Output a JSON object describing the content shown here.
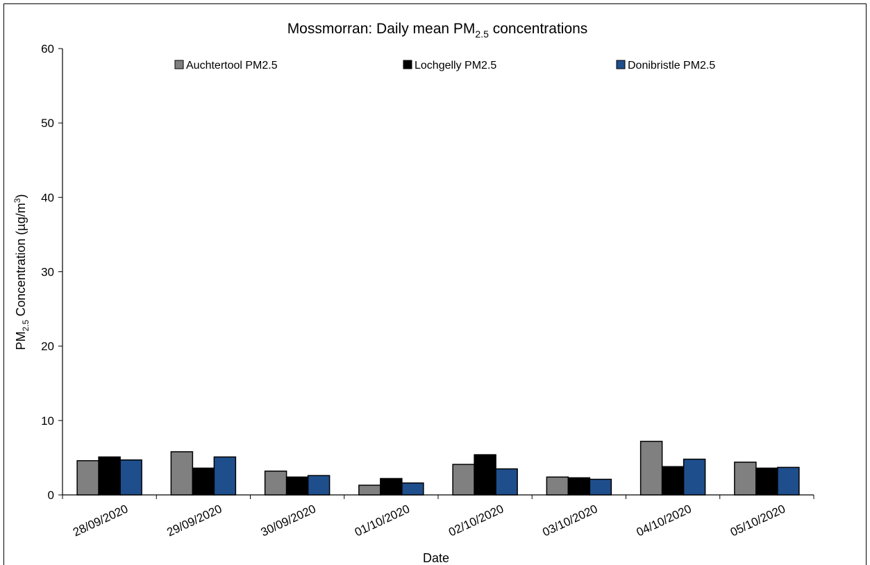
{
  "chart_data": {
    "type": "bar",
    "title": "Mossmorran: Daily mean PM2.5 concentrations",
    "title_parts": {
      "pre": "Mossmorran: Daily mean PM",
      "sub": "2.5",
      "post": " concentrations"
    },
    "xlabel": "Date",
    "ylabel": "PM2.5 Concentration (µg/m3)",
    "ylabel_parts": {
      "pre": "PM",
      "sub": "2.5",
      "mid": " Concentration (µg/m",
      "sup": "3",
      "post": ")"
    },
    "ylim": [
      0,
      60
    ],
    "yticks": [
      "0",
      "10",
      "20",
      "30",
      "40",
      "50",
      "60"
    ],
    "categories": [
      "28/09/2020",
      "29/09/2020",
      "30/09/2020",
      "01/10/2020",
      "02/10/2020",
      "03/10/2020",
      "04/10/2020",
      "05/10/2020"
    ],
    "series": [
      {
        "name": "Auchtertool PM2.5",
        "color": "#808080",
        "values": [
          4.6,
          5.8,
          3.2,
          1.3,
          4.1,
          2.4,
          7.2,
          4.4
        ]
      },
      {
        "name": "Lochgelly PM2.5",
        "color": "#000000",
        "values": [
          5.1,
          3.6,
          2.4,
          2.2,
          5.4,
          2.3,
          3.8,
          3.6
        ]
      },
      {
        "name": "Donibristle PM2.5",
        "color": "#1f4e8c",
        "values": [
          4.7,
          5.1,
          2.6,
          1.6,
          3.5,
          2.1,
          4.8,
          3.7
        ]
      }
    ],
    "legend": "top",
    "grid": false
  }
}
